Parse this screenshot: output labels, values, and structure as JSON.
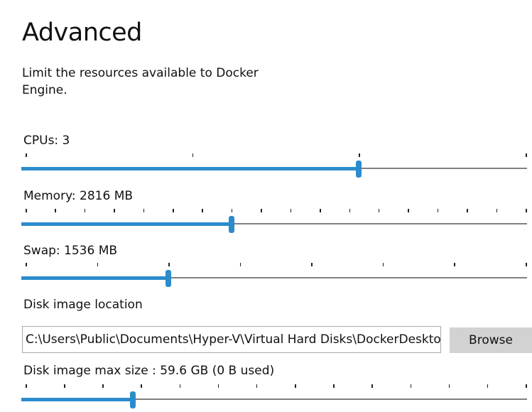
{
  "title": "Advanced",
  "description": "Limit the resources available to Docker Engine.",
  "sliders": [
    {
      "label": "CPUs: 3",
      "ticks": 4,
      "value": 0.6667
    },
    {
      "label": "Memory: 2816 MB",
      "ticks": 18,
      "value": 0.4118
    },
    {
      "label": "Swap: 1536 MB",
      "ticks": 8,
      "value": 0.2857
    },
    {
      "label": "Disk image max size : 59.6 GB (0 B  used)",
      "ticks": 14,
      "value": 0.2143
    }
  ],
  "disk": {
    "label": "Disk image location",
    "path": "C:\\Users\\Public\\Documents\\Hyper-V\\Virtual Hard Disks\\DockerDesktop.vhdx",
    "browse_label": "Browse"
  },
  "colors": {
    "accent": "#2b8ccc",
    "track": "#808080"
  }
}
